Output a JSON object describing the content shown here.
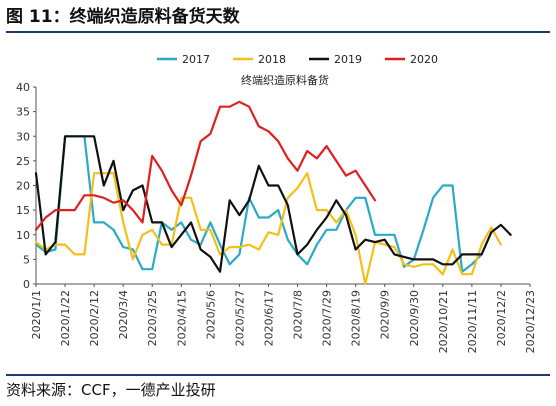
{
  "header": {
    "title": "图 11：终端织造原料备货天数"
  },
  "footer": {
    "source": "资料来源：CCF，一德产业投研"
  },
  "chart_data": {
    "type": "line",
    "title": "终端织造原料备货",
    "xlabel": "",
    "ylabel": "",
    "ylim": [
      0,
      40
    ],
    "yticks": [
      0,
      5,
      10,
      15,
      20,
      25,
      30,
      35,
      40
    ],
    "grid": false,
    "legend_position": "top",
    "x_tick_labels": [
      "2020/1/1",
      "2020/1/22",
      "2020/2/12",
      "2020/3/4",
      "2020/3/25",
      "2020/4/15",
      "2020/5/6",
      "2020/5/27",
      "2020/6/17",
      "2020/7/8",
      "2020/7/29",
      "2020/8/19",
      "2020/9/9",
      "2020/9/30",
      "2020/10/21",
      "2020/11/11",
      "2020/12/2",
      "2020/12/23"
    ],
    "x_range_weeks": [
      0,
      51
    ],
    "series": [
      {
        "name": "2017",
        "color": "#2aa9c9",
        "values": [
          8,
          6.5,
          7,
          30,
          30,
          30,
          12.5,
          12.5,
          11,
          7.5,
          7,
          3,
          3,
          12.5,
          11,
          12.5,
          9,
          8,
          12.5,
          8,
          4,
          6,
          17.5,
          13.5,
          13.5,
          15,
          9,
          6,
          4,
          8,
          11,
          11,
          15,
          17.5,
          17.5,
          10,
          10,
          10,
          3.5,
          5,
          11,
          17.5,
          20,
          20,
          2.5,
          4,
          6
        ]
      },
      {
        "name": "2018",
        "color": "#f2c018",
        "values": [
          8.5,
          7,
          8,
          8,
          6,
          6,
          22.5,
          22.5,
          22.5,
          12.5,
          5,
          10,
          11,
          8,
          8,
          17.5,
          17.5,
          11,
          11,
          6,
          7.5,
          7.5,
          8,
          7,
          10.5,
          10,
          17.5,
          19.5,
          22.5,
          15,
          15,
          12.5,
          15,
          10,
          0,
          8.5,
          8,
          7.5,
          4,
          3.5,
          4,
          4,
          2,
          7,
          2,
          2,
          8,
          11.5,
          8
        ]
      },
      {
        "name": "2019",
        "color": "#111111",
        "values": [
          22.5,
          6,
          8.5,
          30,
          30,
          30,
          30,
          20,
          25,
          15,
          19,
          20,
          12.5,
          12.5,
          7.5,
          10,
          12.5,
          7,
          5.5,
          2.5,
          17,
          14,
          17,
          24,
          20,
          20,
          16,
          6,
          8,
          11,
          13.5,
          17,
          14,
          7,
          9,
          8.5,
          9,
          6,
          5.5,
          5,
          5,
          5,
          4,
          4,
          6,
          6,
          6,
          10.5,
          12,
          10
        ]
      },
      {
        "name": "2020",
        "color": "#e02020",
        "values": [
          11,
          13.5,
          15,
          15,
          15,
          18,
          18,
          17.5,
          16.5,
          17,
          15,
          12.5,
          26,
          23,
          19,
          16,
          22,
          29,
          30.5,
          36,
          36,
          37,
          36,
          32,
          31,
          29,
          25.5,
          23,
          27,
          25.5,
          28,
          25,
          22,
          23,
          20,
          17
        ]
      }
    ]
  }
}
